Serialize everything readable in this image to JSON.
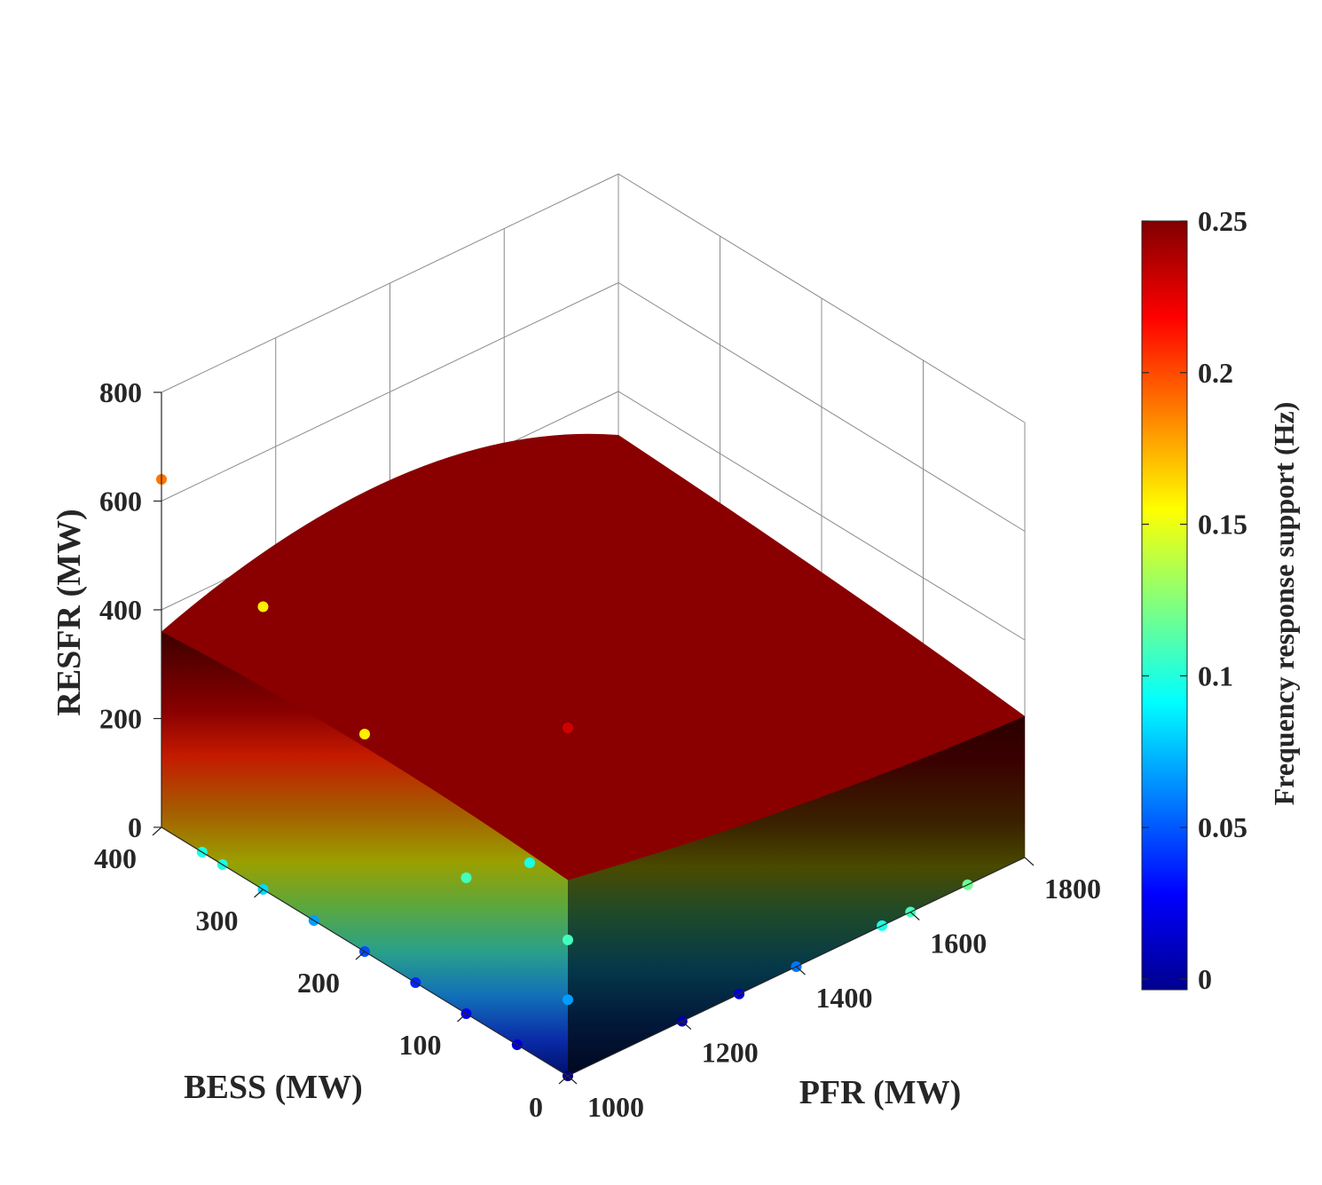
{
  "chart_data": {
    "type": "surface3d",
    "xlabel": "PFR (MW)",
    "ylabel": "BESS (MW)",
    "zlabel": "RESFR (MW)",
    "colorbar_label": "Frequency response support (Hz)",
    "xlim": [
      1000,
      1800
    ],
    "ylim": [
      0,
      400
    ],
    "zlim": [
      0,
      800
    ],
    "clim": [
      0,
      0.25
    ],
    "x_ticks": [
      "1000",
      "1200",
      "1400",
      "1600",
      "1800"
    ],
    "y_ticks": [
      "0",
      "100",
      "200",
      "300",
      "400"
    ],
    "z_ticks": [
      "0",
      "200",
      "400",
      "600",
      "800"
    ],
    "colorbar_ticks": [
      "0",
      "0.05",
      "0.1",
      "0.15",
      "0.2",
      "0.25"
    ],
    "colormap": "jet",
    "grid": true,
    "surface_top_z": {
      "corner_pfr1000_bess400": 360,
      "corner_pfr1000_bess0": 360,
      "corner_pfr1800_bess0": 260,
      "corner_pfr1800_bess400": 320
    },
    "points": [
      {
        "x": 1000,
        "y": 0,
        "z": 0,
        "c": 0.0
      },
      {
        "x": 1000,
        "y": 50,
        "z": 0,
        "c": 0.02
      },
      {
        "x": 1000,
        "y": 100,
        "z": 0,
        "c": 0.03
      },
      {
        "x": 1000,
        "y": 150,
        "z": 0,
        "c": 0.04
      },
      {
        "x": 1000,
        "y": 200,
        "z": 0,
        "c": 0.05
      },
      {
        "x": 1000,
        "y": 250,
        "z": 0,
        "c": 0.07
      },
      {
        "x": 1000,
        "y": 300,
        "z": 0,
        "c": 0.085
      },
      {
        "x": 1000,
        "y": 340,
        "z": 0,
        "c": 0.1
      },
      {
        "x": 1000,
        "y": 360,
        "z": 0,
        "c": 0.1
      },
      {
        "x": 1000,
        "y": 0,
        "z": 140,
        "c": 0.07
      },
      {
        "x": 1000,
        "y": 0,
        "z": 250,
        "c": 0.11
      },
      {
        "x": 1000,
        "y": 0,
        "z": 640,
        "c": 0.23
      },
      {
        "x": 1000,
        "y": 100,
        "z": 250,
        "c": 0.11
      },
      {
        "x": 1000,
        "y": 200,
        "z": 400,
        "c": 0.16
      },
      {
        "x": 1000,
        "y": 300,
        "z": 520,
        "c": 0.16
      },
      {
        "x": 1000,
        "y": 400,
        "z": 640,
        "c": 0.19
      },
      {
        "x": 1200,
        "y": 0,
        "z": 0,
        "c": 0.01
      },
      {
        "x": 1300,
        "y": 0,
        "z": 0,
        "c": 0.02
      },
      {
        "x": 1400,
        "y": 0,
        "z": 0,
        "c": 0.06
      },
      {
        "x": 1550,
        "y": 0,
        "z": 0,
        "c": 0.1
      },
      {
        "x": 1600,
        "y": 0,
        "z": 0,
        "c": 0.11
      },
      {
        "x": 1700,
        "y": 0,
        "z": 0,
        "c": 0.12
      },
      {
        "x": 1200,
        "y": 150,
        "z": 120,
        "c": 0.1
      }
    ]
  }
}
